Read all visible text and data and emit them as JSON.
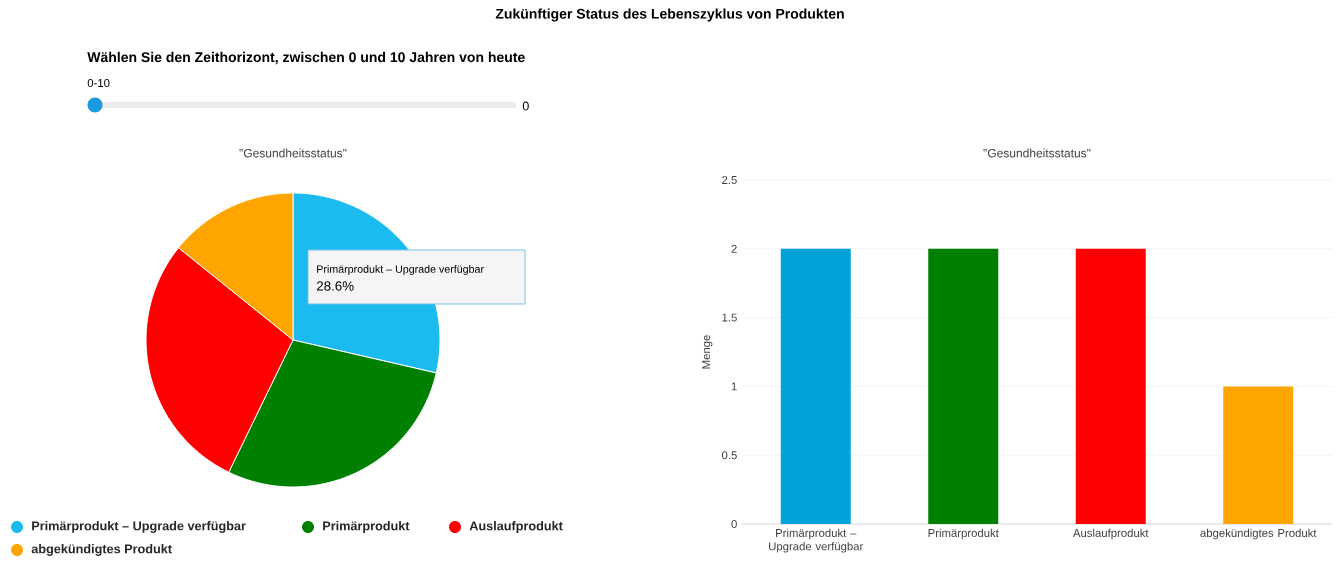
{
  "chart_data": [
    {
      "type": "other",
      "title": "Zukünftiger Status des Lebenszyklus von Produkten",
      "annotations": [
        "Wählen Sie den Zeithorizont, zwischen 0 und 10 Jahren von heute",
        "0-10",
        "0"
      ]
    },
    {
      "type": "pie",
      "title": "\"Gesundheitsstatus\"",
      "categories": [
        "Primärprodukt – Upgrade verfügbar",
        "Primärprodukt",
        "Auslaufprodukt",
        "abgekündigtes Produkt"
      ],
      "values": [
        28.6,
        28.6,
        28.6,
        14.2
      ],
      "colors": [
        "#1cbbef",
        "#008000",
        "#ff0000",
        "#ffa500"
      ],
      "legend": "bottom",
      "annotations": [
        "Primärprodukt – Upgrade verfügbar",
        "28.6%"
      ]
    },
    {
      "type": "bar",
      "title": "\"Gesundheitsstatus\"",
      "ylabel": "Menge",
      "categories": [
        "Primärprodukt – Upgrade verfügbar",
        "Primärprodukt",
        "Auslaufprodukt",
        "abgekündigtes Produkt"
      ],
      "values": [
        2,
        2,
        2,
        1
      ],
      "colors": [
        "#00a2d9",
        "#008000",
        "#ff0000",
        "#ffa500"
      ],
      "ylim": [
        0,
        2.5
      ],
      "yticks": [
        0,
        0.5,
        1,
        1.5,
        2,
        2.5
      ],
      "grid": "y"
    }
  ]
}
